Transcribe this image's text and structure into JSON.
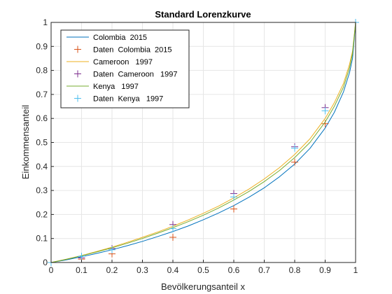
{
  "chart_data": {
    "type": "line",
    "title": "Standard Lorenzkurve",
    "xlabel": "Bevölkerungsanteil x",
    "ylabel": "Einkommensanteil",
    "xlim": [
      0,
      1
    ],
    "ylim": [
      0,
      1
    ],
    "xticks": [
      "0",
      "0.1",
      "0.2",
      "0.3",
      "0.4",
      "0.5",
      "0.6",
      "0.7",
      "0.8",
      "0.9",
      "1"
    ],
    "yticks": [
      "0",
      "0.1",
      "0.2",
      "0.3",
      "0.4",
      "0.5",
      "0.6",
      "0.7",
      "0.8",
      "0.9",
      "1"
    ],
    "grid": true,
    "legend_position": "top-left",
    "series": [
      {
        "name": "Colombia  2015",
        "kind": "line",
        "color": "#0072BD",
        "x": [
          0,
          0.05,
          0.1,
          0.15,
          0.2,
          0.25,
          0.3,
          0.35,
          0.4,
          0.45,
          0.5,
          0.55,
          0.6,
          0.65,
          0.7,
          0.75,
          0.8,
          0.85,
          0.9,
          0.93,
          0.96,
          0.98,
          0.99,
          1
        ],
        "y": [
          0,
          0.011,
          0.024,
          0.038,
          0.053,
          0.07,
          0.088,
          0.108,
          0.129,
          0.152,
          0.178,
          0.206,
          0.237,
          0.272,
          0.311,
          0.357,
          0.41,
          0.475,
          0.56,
          0.625,
          0.71,
          0.79,
          0.85,
          1
        ]
      },
      {
        "name": "Daten  Colombia  2015",
        "kind": "marker",
        "color": "#D95319",
        "x": [
          0,
          0.1,
          0.2,
          0.4,
          0.6,
          0.8,
          0.9,
          1
        ],
        "y": [
          0,
          0.014,
          0.036,
          0.105,
          0.223,
          0.418,
          0.578,
          1
        ]
      },
      {
        "name": "Cameroon   1997",
        "kind": "line",
        "color": "#EDB120",
        "x": [
          0,
          0.05,
          0.1,
          0.15,
          0.2,
          0.25,
          0.3,
          0.35,
          0.4,
          0.45,
          0.5,
          0.55,
          0.6,
          0.65,
          0.7,
          0.75,
          0.8,
          0.85,
          0.9,
          0.93,
          0.96,
          0.98,
          0.99,
          1
        ],
        "y": [
          0,
          0.014,
          0.029,
          0.046,
          0.064,
          0.084,
          0.105,
          0.127,
          0.151,
          0.177,
          0.205,
          0.235,
          0.269,
          0.306,
          0.348,
          0.395,
          0.45,
          0.515,
          0.6,
          0.665,
          0.745,
          0.825,
          0.88,
          1
        ]
      },
      {
        "name": "Daten  Cameroon   1997",
        "kind": "marker",
        "color": "#7E2F8E",
        "x": [
          0,
          0.1,
          0.2,
          0.4,
          0.6,
          0.8,
          0.9,
          1
        ],
        "y": [
          0,
          0.019,
          0.058,
          0.158,
          0.287,
          0.482,
          0.645,
          1
        ]
      },
      {
        "name": "Kenya   1997",
        "kind": "line",
        "color": "#77AC30",
        "x": [
          0,
          0.05,
          0.1,
          0.15,
          0.2,
          0.25,
          0.3,
          0.35,
          0.4,
          0.45,
          0.5,
          0.55,
          0.6,
          0.65,
          0.7,
          0.75,
          0.8,
          0.85,
          0.9,
          0.93,
          0.96,
          0.98,
          0.99,
          1
        ],
        "y": [
          0,
          0.013,
          0.028,
          0.044,
          0.061,
          0.08,
          0.1,
          0.122,
          0.145,
          0.17,
          0.197,
          0.227,
          0.26,
          0.296,
          0.337,
          0.383,
          0.437,
          0.5,
          0.585,
          0.65,
          0.73,
          0.81,
          0.87,
          1
        ]
      },
      {
        "name": "Daten  Kenya   1997",
        "kind": "marker",
        "color": "#4DBEEE",
        "x": [
          0,
          0.1,
          0.2,
          0.4,
          0.6,
          0.8,
          0.9,
          1
        ],
        "y": [
          0,
          0.026,
          0.053,
          0.141,
          0.273,
          0.476,
          0.632,
          1
        ]
      }
    ]
  }
}
